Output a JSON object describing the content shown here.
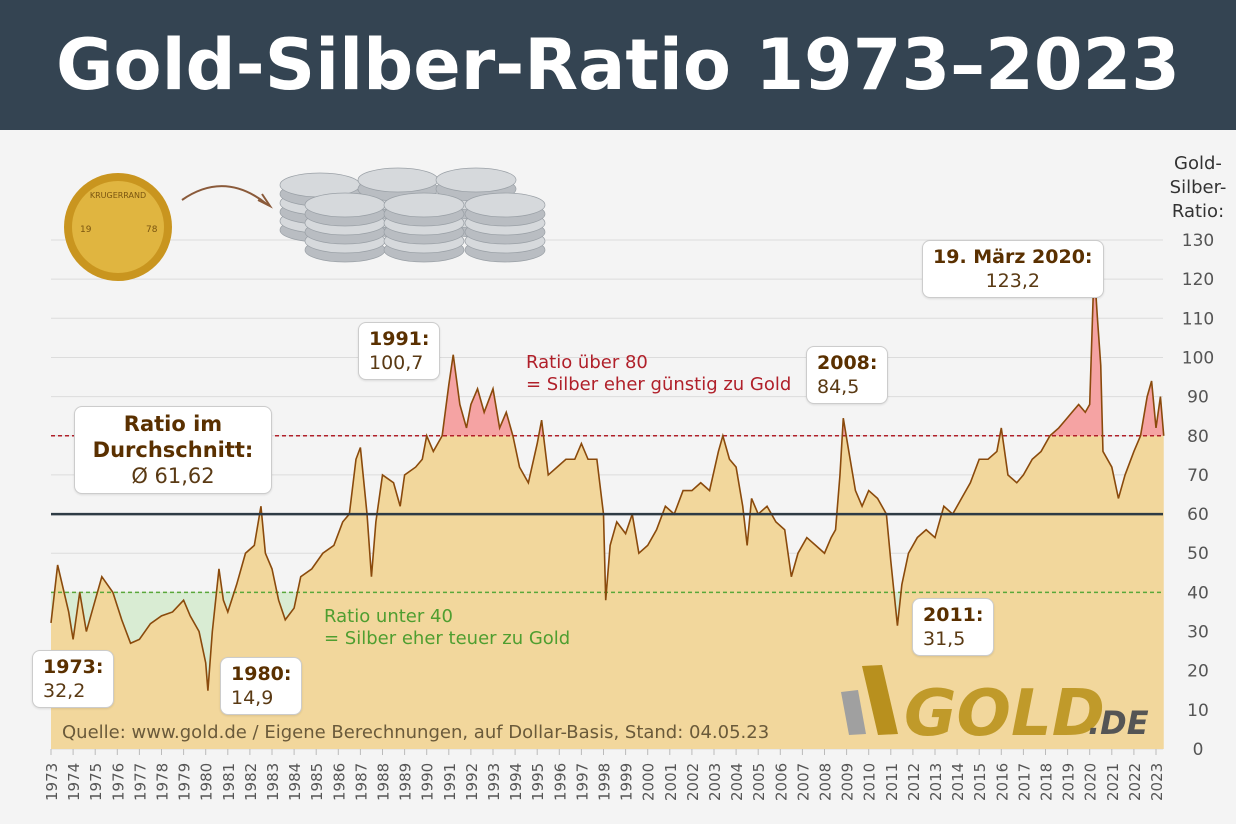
{
  "title": "Gold-Silber-Ratio 1973–2023",
  "chart_data": {
    "type": "area",
    "title": "Gold-Silber-Ratio 1973–2023",
    "ylabel": "Gold-Silber-Ratio:",
    "ylabel_lines": [
      "Gold-",
      "Silber-",
      "Ratio:"
    ],
    "ylim": [
      0,
      130
    ],
    "yticks": [
      0,
      10,
      20,
      30,
      40,
      50,
      60,
      70,
      80,
      90,
      100,
      110,
      120,
      130
    ],
    "xlim": [
      1973,
      2023.35
    ],
    "xticks": [
      1973,
      1974,
      1975,
      1976,
      1977,
      1978,
      1979,
      1980,
      1981,
      1982,
      1983,
      1984,
      1985,
      1986,
      1987,
      1988,
      1989,
      1990,
      1991,
      1992,
      1993,
      1994,
      1995,
      1996,
      1997,
      1998,
      1999,
      2000,
      2001,
      2002,
      2003,
      2004,
      2005,
      2006,
      2007,
      2008,
      2009,
      2010,
      2011,
      2012,
      2013,
      2014,
      2015,
      2016,
      2017,
      2018,
      2019,
      2020,
      2021,
      2022,
      2023
    ],
    "grid": true,
    "reference_lines": {
      "average": 61.62,
      "upper": 80,
      "lower": 40
    },
    "colors": {
      "line": "#8a4a0c",
      "area": "#f2d79c",
      "above80": "#f5a3a3",
      "below40": "#d9ecd3",
      "average": "#2e3b45",
      "upper": "#b0202a",
      "lower": "#5aa83a"
    },
    "series": [
      {
        "x": [
          1973.0,
          1973.3,
          1973.8,
          1974.0,
          1974.3,
          1974.6,
          1975.0,
          1975.3,
          1975.8,
          1976.2,
          1976.6,
          1977.0,
          1977.5,
          1978.0,
          1978.5,
          1979.0,
          1979.3,
          1979.7,
          1980.0,
          1980.1,
          1980.3,
          1980.6,
          1980.8,
          1981.0,
          1981.4,
          1981.8,
          1982.2,
          1982.5,
          1982.7,
          1983.0,
          1983.3,
          1983.6,
          1984.0,
          1984.3,
          1984.8,
          1985.3,
          1985.8,
          1986.2,
          1986.5,
          1986.8,
          1987.0,
          1987.3,
          1987.5,
          1987.7,
          1988.0,
          1988.5,
          1988.8,
          1989.0,
          1989.5,
          1989.8,
          1990.0,
          1990.3,
          1990.7,
          1991.0,
          1991.2,
          1991.5,
          1991.8,
          1992.0,
          1992.3,
          1992.6,
          1993.0,
          1993.3,
          1993.6,
          1993.9,
          1994.2,
          1994.6,
          1995.0,
          1995.2,
          1995.5,
          1995.9,
          1996.3,
          1996.7,
          1997.0,
          1997.3,
          1997.7,
          1998.0,
          1998.1,
          1998.3,
          1998.6,
          1999.0,
          1999.3,
          1999.6,
          2000.0,
          2000.4,
          2000.8,
          2001.2,
          2001.6,
          2002.0,
          2002.4,
          2002.8,
          2003.2,
          2003.4,
          2003.7,
          2004.0,
          2004.3,
          2004.5,
          2004.7,
          2005.0,
          2005.4,
          2005.8,
          2006.2,
          2006.5,
          2006.8,
          2007.2,
          2007.6,
          2008.0,
          2008.3,
          2008.5,
          2008.7,
          2008.85,
          2009.1,
          2009.4,
          2009.7,
          2010.0,
          2010.4,
          2010.8,
          2011.0,
          2011.3,
          2011.5,
          2011.8,
          2012.2,
          2012.6,
          2013.0,
          2013.4,
          2013.8,
          2014.2,
          2014.6,
          2015.0,
          2015.4,
          2015.8,
          2016.0,
          2016.3,
          2016.7,
          2017.0,
          2017.4,
          2017.8,
          2018.2,
          2018.6,
          2018.9,
          2019.2,
          2019.5,
          2019.8,
          2020.0,
          2020.2,
          2020.35,
          2020.5,
          2020.6,
          2021.0,
          2021.3,
          2021.6,
          2022.0,
          2022.3,
          2022.6,
          2022.8,
          2023.0,
          2023.2,
          2023.35
        ],
        "y": [
          32.2,
          47,
          35,
          28,
          40,
          30,
          38,
          44,
          40,
          33,
          27,
          28,
          32,
          34,
          35,
          38,
          34,
          30,
          22,
          14.9,
          30,
          46,
          38,
          35,
          42,
          50,
          52,
          62,
          50,
          46,
          38,
          33,
          36,
          44,
          46,
          50,
          52,
          58,
          60,
          74,
          77,
          60,
          44,
          58,
          70,
          68,
          62,
          70,
          72,
          74,
          80,
          76,
          80,
          93,
          100.7,
          88,
          82,
          88,
          92,
          86,
          92,
          82,
          86,
          80,
          72,
          68,
          78,
          84,
          70,
          72,
          74,
          74,
          78,
          74,
          74,
          60,
          38,
          52,
          58,
          55,
          60,
          50,
          52,
          56,
          62,
          60,
          66,
          66,
          68,
          66,
          76,
          80,
          74,
          72,
          62,
          52,
          64,
          60,
          62,
          58,
          56,
          44,
          50,
          54,
          52,
          50,
          54,
          56,
          70,
          84.5,
          76,
          66,
          62,
          66,
          64,
          60,
          48,
          31.5,
          42,
          50,
          54,
          56,
          54,
          62,
          60,
          64,
          68,
          74,
          74,
          76,
          82,
          70,
          68,
          70,
          74,
          76,
          80,
          82,
          84,
          86,
          88,
          86,
          88,
          123.2,
          110,
          98,
          76,
          72,
          64,
          70,
          76,
          80,
          90,
          94,
          82,
          90,
          80
        ]
      }
    ],
    "annotations": [
      {
        "label": "1973:",
        "value": "32,2"
      },
      {
        "label": "1980:",
        "value": "14,9"
      },
      {
        "label": "1991:",
        "value": "100,7"
      },
      {
        "label": "2008:",
        "value": "84,5"
      },
      {
        "label": "2011:",
        "value": "31,5"
      },
      {
        "label": "19. März 2020:",
        "value": "123,2"
      },
      {
        "label": "Ratio im Durchschnitt:",
        "value": "Ø 61,62"
      }
    ],
    "notes": {
      "above": [
        "Ratio über 80",
        "= Silber eher günstig zu Gold"
      ],
      "below": [
        "Ratio unter 40",
        "= Silber eher teuer zu Gold"
      ]
    },
    "source": "Quelle: www.gold.de / Eigene Berechnungen, auf Dollar-Basis, Stand: 04.05.23"
  },
  "logo": {
    "text": "GOLD",
    "suffix": ".DE"
  },
  "coin": {
    "text": "KRUGERRAND",
    "left": "19",
    "right": "78"
  }
}
